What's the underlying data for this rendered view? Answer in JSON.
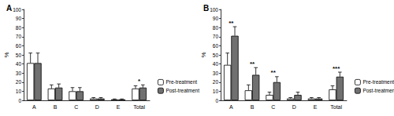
{
  "chart_data": [
    {
      "type": "bar",
      "title": "A",
      "ylabel": "%",
      "categories": [
        "A",
        "B",
        "C",
        "D",
        "E",
        "Total"
      ],
      "series": [
        {
          "name": "Pre-treatment",
          "color": "#ffffff",
          "values": [
            41,
            13,
            10,
            2,
            1,
            13
          ],
          "errors": [
            11,
            4,
            4,
            1,
            0.5,
            3
          ]
        },
        {
          "name": "Post-treatment",
          "color": "#707070",
          "values": [
            41,
            14,
            10,
            2,
            1,
            14
          ],
          "errors": [
            11,
            4,
            4,
            1,
            0.5,
            3
          ]
        }
      ],
      "annotations": [
        {
          "category": "Total",
          "text": "*"
        }
      ],
      "ylim": [
        0,
        100
      ],
      "yticks": [
        0,
        10,
        20,
        30,
        40,
        50,
        60,
        70,
        80,
        90,
        100
      ],
      "grid": false,
      "legend": "right"
    },
    {
      "type": "bar",
      "title": "B",
      "ylabel": "%",
      "categories": [
        "A",
        "B",
        "C",
        "D",
        "E",
        "Total"
      ],
      "series": [
        {
          "name": "Pre-treatment",
          "color": "#ffffff",
          "values": [
            39,
            11,
            6,
            2,
            2,
            12
          ],
          "errors": [
            13,
            6,
            3,
            1,
            1,
            4
          ]
        },
        {
          "name": "Post-treatment",
          "color": "#707070",
          "values": [
            71,
            28,
            20,
            6,
            2,
            26
          ],
          "errors": [
            10,
            8,
            6,
            3,
            1,
            5
          ]
        }
      ],
      "annotations": [
        {
          "category": "A",
          "text": "**"
        },
        {
          "category": "B",
          "text": "**"
        },
        {
          "category": "C",
          "text": "**"
        },
        {
          "category": "Total",
          "text": "***"
        }
      ],
      "ylim": [
        0,
        100
      ],
      "yticks": [
        0,
        10,
        20,
        30,
        40,
        50,
        60,
        70,
        80,
        90,
        100
      ],
      "grid": false,
      "legend": "right"
    }
  ]
}
